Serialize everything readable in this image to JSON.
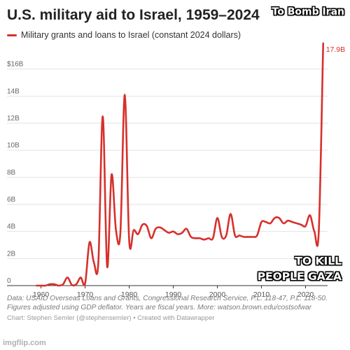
{
  "chart_data": {
    "type": "line",
    "title": "U.S. military aid to Israel, 1959–2024",
    "legend": "top-left",
    "grid": true,
    "xlim": [
      1958,
      2025
    ],
    "ylim": [
      0,
      18
    ],
    "x_ticks": [
      "1960",
      "1970",
      "1980",
      "1990",
      "2000",
      "2010",
      "2020"
    ],
    "y_ticks": [
      "0",
      "2B",
      "4B",
      "6B",
      "8B",
      "10B",
      "12B",
      "14B",
      "$16B"
    ],
    "series": [
      {
        "name": "Military grants and loans to Israel (constant 2024 dollars)",
        "color": "#d7302b",
        "x": [
          1959,
          1960,
          1961,
          1962,
          1963,
          1964,
          1965,
          1966,
          1967,
          1968,
          1969,
          1970,
          1971,
          1972,
          1973,
          1974,
          1975,
          1976,
          1977,
          1978,
          1979,
          1980,
          1981,
          1982,
          1983,
          1984,
          1985,
          1986,
          1987,
          1988,
          1989,
          1990,
          1991,
          1992,
          1993,
          1994,
          1995,
          1996,
          1997,
          1998,
          1999,
          2000,
          2001,
          2002,
          2003,
          2004,
          2005,
          2006,
          2007,
          2008,
          2009,
          2010,
          2011,
          2012,
          2013,
          2014,
          2015,
          2016,
          2017,
          2018,
          2019,
          2020,
          2021,
          2022,
          2023,
          2024
        ],
        "values": [
          0,
          0,
          0,
          0.1,
          0.1,
          0,
          0.1,
          0.6,
          0.05,
          0.1,
          0.6,
          0.15,
          3.2,
          1.7,
          1.7,
          12.5,
          1.4,
          8.2,
          4.1,
          3.9,
          14.1,
          3.3,
          4.1,
          3.8,
          4.5,
          4.4,
          3.5,
          4.2,
          4.3,
          4.1,
          3.9,
          4.0,
          3.8,
          3.9,
          4.2,
          3.6,
          3.5,
          3.5,
          3.4,
          3.5,
          3.5,
          5.0,
          3.6,
          3.7,
          5.3,
          3.7,
          3.7,
          3.6,
          3.6,
          3.6,
          3.7,
          4.7,
          4.7,
          4.6,
          5.0,
          5.0,
          4.6,
          4.8,
          4.7,
          4.6,
          4.5,
          4.4,
          5.2,
          4.0,
          4.0,
          17.9
        ]
      }
    ],
    "annotation": "17.9B"
  },
  "footer": {
    "source_line1": "Data: USAID Overseas Loans and Grants, Congressional Research Service, P.L. 118-47, P.L. 118-50.",
    "source_line2": "Figures adjusted using GDP deflator. Years are fiscal years. More: watson.brown.edu/costsofwar",
    "credit": "Chart: Stephen Semler (@stephensemler) • Created with Datawrapper"
  },
  "overlay": {
    "top_caption": "To Bomb Iran",
    "bottom_caption_line1": "TO KILL",
    "bottom_caption_line2": "PEOPLE GAZA",
    "watermark": "imgflip.com"
  }
}
